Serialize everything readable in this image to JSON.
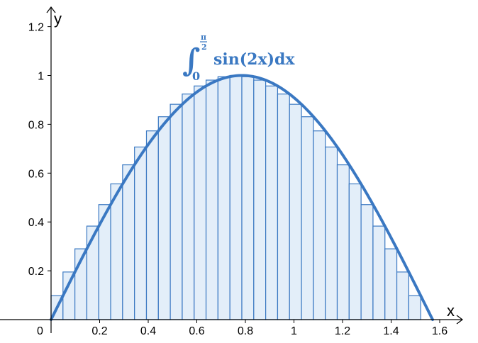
{
  "chart_data": {
    "type": "area",
    "title": "",
    "xlabel": "x",
    "ylabel": "y",
    "origin_label": "0",
    "xlim": [
      0,
      1.6
    ],
    "ylim": [
      0,
      1.2
    ],
    "x_ticks": [
      0.2,
      0.4,
      0.6,
      0.8,
      1,
      1.2,
      1.4,
      1.6
    ],
    "x_tick_labels": [
      "0.2",
      "0.4",
      "0.6",
      "0.8",
      "1",
      "1.2",
      "1.4",
      "1.6"
    ],
    "y_ticks": [
      0.2,
      0.4,
      0.6,
      0.8,
      1,
      1.2
    ],
    "y_tick_labels": [
      "0.2",
      "0.4",
      "0.6",
      "0.8",
      "1",
      "1.2"
    ],
    "grid": false,
    "curve": {
      "function": "sin(2x)",
      "domain": [
        0,
        1.5708
      ]
    },
    "rectangles": {
      "count": 32,
      "x_start": 0,
      "x_end": 1.5708,
      "heights": [
        0.098,
        0.195,
        0.29,
        0.383,
        0.471,
        0.556,
        0.634,
        0.707,
        0.773,
        0.831,
        0.882,
        0.924,
        0.957,
        0.981,
        0.995,
        1.0,
        0.995,
        0.981,
        0.957,
        0.924,
        0.882,
        0.831,
        0.773,
        0.707,
        0.634,
        0.556,
        0.471,
        0.383,
        0.29,
        0.195,
        0.098,
        0.0
      ]
    },
    "annotation": {
      "integral_sign": "∫",
      "lower_limit": "0",
      "upper_limit_numerator": "π",
      "upper_limit_denominator": "2",
      "integrand": "sin(2x)dx"
    },
    "colors": {
      "curve": "#3a78c2",
      "rect_fill": "#e3eef9",
      "rect_stroke": "#3a78c2",
      "axis": "#000000"
    }
  }
}
